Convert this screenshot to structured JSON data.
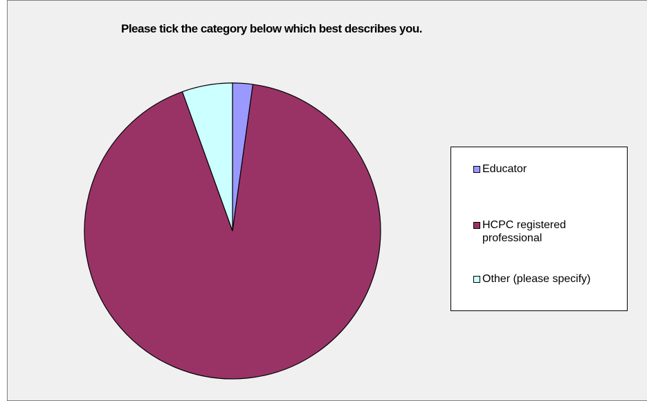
{
  "chart_data": {
    "type": "pie",
    "title": "Please tick the category below which best describes you.",
    "slices": [
      {
        "label": "Educator",
        "percent": 2.2,
        "color": "#9999ff"
      },
      {
        "label": "HCPC registered professional",
        "percent": 92.3,
        "color": "#993366"
      },
      {
        "label": "Other (please specify)",
        "percent": 5.5,
        "color": "#ccffff"
      }
    ],
    "start_angle": "12 o'clock",
    "direction": "clockwise",
    "legend_position": "right",
    "background_color": "#f0f0f0"
  },
  "legend": {
    "items": [
      {
        "label": "Educator",
        "color": "#9999ff"
      },
      {
        "label": "HCPC registered professional",
        "color": "#993366"
      },
      {
        "label": "Other (please specify)",
        "color": "#ccffff"
      }
    ]
  }
}
